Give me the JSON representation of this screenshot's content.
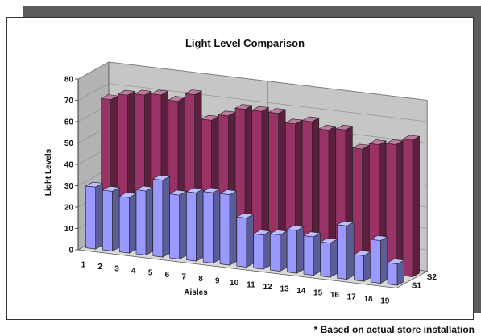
{
  "chart_data": {
    "type": "bar",
    "subtype": "3d-column",
    "title": "Light Level Comparison",
    "xlabel": "Aisles",
    "ylabel": "Light Levels",
    "ylim": [
      0,
      80
    ],
    "yticks": [
      0,
      10,
      20,
      30,
      40,
      50,
      60,
      70,
      80
    ],
    "grid": true,
    "legend": "none",
    "categories": [
      "1",
      "2",
      "3",
      "4",
      "5",
      "6",
      "7",
      "8",
      "9",
      "10",
      "11",
      "12",
      "13",
      "14",
      "15",
      "16",
      "17",
      "18",
      "19"
    ],
    "series": [
      {
        "name": "S1",
        "color": "#9999ff",
        "values": [
          29,
          28,
          26,
          30,
          36,
          30,
          32,
          33,
          33,
          23,
          16,
          17,
          20,
          18,
          16,
          25,
          12,
          20,
          10
        ]
      },
      {
        "name": "S2",
        "color": "#993366",
        "values": [
          66,
          69,
          70,
          71,
          69,
          73,
          62,
          65,
          69,
          69,
          69,
          65,
          67,
          64,
          65,
          57,
          60,
          61,
          64
        ]
      }
    ],
    "footnote": "* Based on actual store installation"
  }
}
